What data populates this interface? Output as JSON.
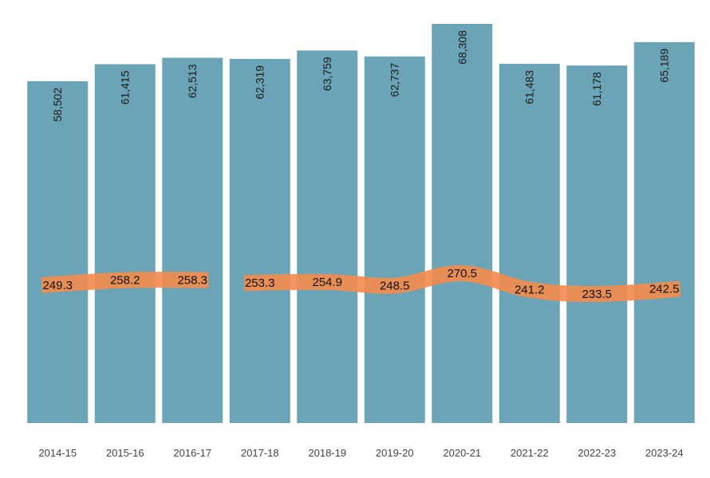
{
  "colors": {
    "bar": "#6aa4b6",
    "line": "#f28c4e",
    "background": "#ffffff"
  },
  "chart_data": {
    "type": "bar",
    "title": "",
    "xlabel": "",
    "ylabel": "",
    "categories": [
      "2014-15",
      "2015-16",
      "2016-17",
      "2017-18",
      "2018-19",
      "2019-20",
      "2020-21",
      "2021-22",
      "2022-23",
      "2023-24"
    ],
    "grid": false,
    "legend": "none",
    "series": [
      {
        "type": "bar",
        "values": [
          58502,
          61415,
          62513,
          62319,
          63759,
          62737,
          68308,
          61483,
          61178,
          65189
        ],
        "labels": [
          "58,502",
          "61,415",
          "62,513",
          "62,319",
          "63,759",
          "62,737",
          "68,308",
          "61,483",
          "61,178",
          "65,189"
        ],
        "ylim": [
          0,
          68308
        ]
      },
      {
        "type": "line",
        "values": [
          249.3,
          258.2,
          258.3,
          253.3,
          254.9,
          248.5,
          270.5,
          241.2,
          233.5,
          242.5
        ],
        "labels": [
          "249.3",
          "258.2",
          "258.3",
          "253.3",
          "254.9",
          "248.5",
          "270.5",
          "241.2",
          "233.5",
          "242.5"
        ],
        "segments": [
          [
            0,
            2
          ],
          [
            3,
            9
          ]
        ]
      }
    ]
  }
}
